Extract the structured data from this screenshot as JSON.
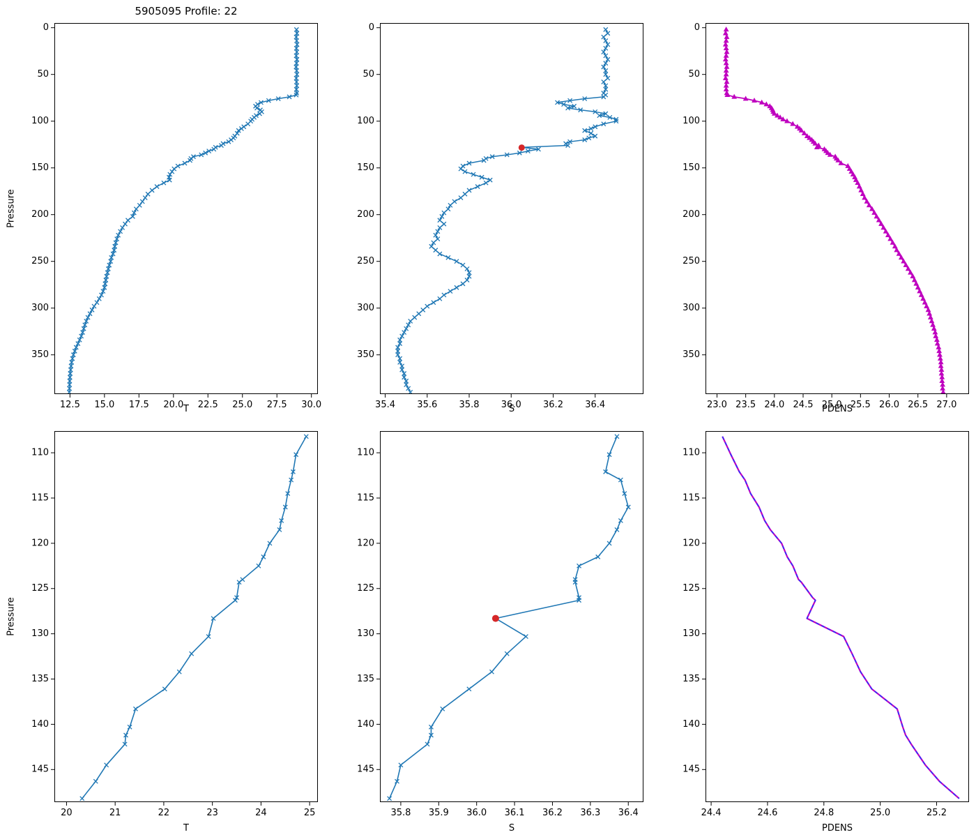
{
  "title": "5905095 Profile: 22",
  "colors": {
    "series_blue": "#1f77b4",
    "series_magenta": "#bf00bf",
    "overlay_dash_blue": "#2d2dff",
    "highlight_red": "#d62728",
    "axis": "#000000",
    "background": "#ffffff"
  },
  "profiles": {
    "top": {
      "pressure": [
        2,
        6,
        10,
        14,
        18,
        22,
        26,
        30,
        34,
        38,
        42,
        46,
        50,
        54,
        58,
        62,
        66,
        70,
        72,
        74,
        76,
        78,
        80,
        82,
        84,
        86,
        88,
        90,
        92,
        94,
        96,
        98,
        100,
        103,
        106,
        108,
        110,
        113,
        116,
        118,
        120,
        122,
        124,
        126,
        128,
        130,
        132,
        134,
        136,
        138,
        140,
        142,
        145,
        148,
        151,
        154,
        157,
        160,
        163,
        166,
        170,
        174,
        178,
        182,
        186,
        190,
        194,
        198,
        202,
        206,
        210,
        214,
        218,
        222,
        226,
        230,
        234,
        238,
        242,
        246,
        250,
        254,
        258,
        262,
        266,
        270,
        274,
        278,
        282,
        286,
        290,
        294,
        298,
        302,
        306,
        310,
        314,
        318,
        322,
        326,
        330,
        334,
        338,
        342,
        346,
        350,
        354,
        358,
        362,
        366,
        370,
        374,
        378,
        382,
        386,
        390
      ],
      "T": [
        28.92,
        28.95,
        28.9,
        28.93,
        28.96,
        28.91,
        28.94,
        28.9,
        28.95,
        28.92,
        28.89,
        28.93,
        28.95,
        28.9,
        28.92,
        28.94,
        28.91,
        28.93,
        28.9,
        28.4,
        27.6,
        26.9,
        26.35,
        26.1,
        25.95,
        26.05,
        26.3,
        26.4,
        26.25,
        26.0,
        25.85,
        25.7,
        25.6,
        25.4,
        25.1,
        24.93,
        24.72,
        24.62,
        24.45,
        24.35,
        24.18,
        24.0,
        23.6,
        23.47,
        23.05,
        22.93,
        22.57,
        22.32,
        22.02,
        21.45,
        21.27,
        21.2,
        20.82,
        20.32,
        20.05,
        19.9,
        19.75,
        19.68,
        19.72,
        19.3,
        18.8,
        18.45,
        18.15,
        17.95,
        17.75,
        17.55,
        17.3,
        17.15,
        17.05,
        16.7,
        16.5,
        16.3,
        16.15,
        16.0,
        15.9,
        15.82,
        15.75,
        15.7,
        15.62,
        15.5,
        15.45,
        15.35,
        15.28,
        15.22,
        15.15,
        15.1,
        15.05,
        15.0,
        14.9,
        14.78,
        14.62,
        14.45,
        14.25,
        14.1,
        13.95,
        13.8,
        13.68,
        13.58,
        13.5,
        13.42,
        13.32,
        13.2,
        13.08,
        12.95,
        12.85,
        12.75,
        12.68,
        12.62,
        12.58,
        12.55,
        12.52,
        12.5,
        12.48,
        12.47,
        12.46,
        12.45
      ],
      "S": [
        36.45,
        36.46,
        36.44,
        36.45,
        36.46,
        36.45,
        36.44,
        36.45,
        36.46,
        36.45,
        36.44,
        36.45,
        36.45,
        36.46,
        36.44,
        36.45,
        36.45,
        36.44,
        36.45,
        36.44,
        36.35,
        36.28,
        36.22,
        36.25,
        36.3,
        36.27,
        36.33,
        36.4,
        36.45,
        36.42,
        36.47,
        36.5,
        36.5,
        36.44,
        36.4,
        36.38,
        36.35,
        36.38,
        36.4,
        36.37,
        36.35,
        36.28,
        36.26,
        36.27,
        36.05,
        36.13,
        36.08,
        36.04,
        35.98,
        35.91,
        35.88,
        35.87,
        35.8,
        35.77,
        35.76,
        35.78,
        35.82,
        35.86,
        35.9,
        35.88,
        35.84,
        35.8,
        35.78,
        35.76,
        35.73,
        35.71,
        35.7,
        35.68,
        35.67,
        35.66,
        35.68,
        35.66,
        35.65,
        35.64,
        35.65,
        35.63,
        35.62,
        35.64,
        35.66,
        35.7,
        35.74,
        35.77,
        35.79,
        35.8,
        35.8,
        35.79,
        35.77,
        35.74,
        35.71,
        35.68,
        35.66,
        35.63,
        35.6,
        35.58,
        35.56,
        35.54,
        35.52,
        35.51,
        35.5,
        35.49,
        35.48,
        35.47,
        35.47,
        35.46,
        35.46,
        35.46,
        35.47,
        35.47,
        35.48,
        35.48,
        35.49,
        35.49,
        35.5,
        35.5,
        35.51,
        35.52
      ],
      "PDENS": [
        23.16,
        23.15,
        23.17,
        23.16,
        23.15,
        23.16,
        23.17,
        23.16,
        23.15,
        23.16,
        23.17,
        23.16,
        23.16,
        23.15,
        23.17,
        23.16,
        23.16,
        23.17,
        23.18,
        23.3,
        23.5,
        23.65,
        23.78,
        23.86,
        23.92,
        23.95,
        23.97,
        23.98,
        24.0,
        24.05,
        24.1,
        24.15,
        24.22,
        24.32,
        24.4,
        24.44,
        24.47,
        24.52,
        24.57,
        24.61,
        24.65,
        24.68,
        24.71,
        24.77,
        24.74,
        24.87,
        24.9,
        24.93,
        24.97,
        25.06,
        25.08,
        25.11,
        25.16,
        25.28,
        25.31,
        25.34,
        25.37,
        25.4,
        25.42,
        25.45,
        25.48,
        25.51,
        25.54,
        25.57,
        25.61,
        25.65,
        25.7,
        25.74,
        25.78,
        25.82,
        25.86,
        25.9,
        25.94,
        25.98,
        26.02,
        26.06,
        26.1,
        26.13,
        26.17,
        26.21,
        26.25,
        26.29,
        26.33,
        26.37,
        26.41,
        26.44,
        26.47,
        26.5,
        26.53,
        26.56,
        26.59,
        26.62,
        26.65,
        26.68,
        26.7,
        26.72,
        26.74,
        26.76,
        26.78,
        26.8,
        26.81,
        26.83,
        26.84,
        26.86,
        26.87,
        26.88,
        26.89,
        26.9,
        26.9,
        26.91,
        26.91,
        26.92,
        26.92,
        26.93,
        26.93,
        26.94
      ]
    },
    "zoom": {
      "pressure": [
        108.2,
        110.2,
        112.1,
        113.0,
        114.5,
        116.0,
        117.5,
        118.5,
        120.0,
        121.5,
        122.5,
        124.0,
        124.3,
        126.0,
        126.3,
        128.3,
        130.3,
        132.2,
        134.2,
        136.1,
        138.3,
        140.3,
        141.2,
        142.2,
        144.5,
        146.3,
        148.2
      ],
      "T": [
        24.93,
        24.72,
        24.66,
        24.62,
        24.55,
        24.5,
        24.42,
        24.38,
        24.18,
        24.05,
        23.95,
        23.62,
        23.55,
        23.5,
        23.47,
        23.02,
        22.92,
        22.57,
        22.32,
        22.02,
        21.42,
        21.3,
        21.22,
        21.2,
        20.82,
        20.6,
        20.32
      ],
      "S": [
        36.37,
        36.35,
        36.34,
        36.38,
        36.39,
        36.4,
        36.38,
        36.37,
        36.35,
        36.32,
        36.27,
        36.26,
        36.26,
        36.27,
        36.27,
        36.05,
        36.13,
        36.08,
        36.04,
        35.98,
        35.91,
        35.88,
        35.88,
        35.87,
        35.8,
        35.79,
        35.77
      ],
      "PDENS": [
        24.44,
        24.47,
        24.5,
        24.52,
        24.54,
        24.57,
        24.59,
        24.61,
        24.65,
        24.67,
        24.69,
        24.71,
        24.72,
        24.76,
        24.77,
        24.74,
        24.87,
        24.9,
        24.93,
        24.97,
        25.06,
        25.08,
        25.09,
        25.11,
        25.16,
        25.21,
        25.28
      ]
    }
  },
  "chart_data": [
    {
      "id": "temperature-full",
      "type": "line",
      "title": "5905095 Profile: 22",
      "xlabel": "T",
      "ylabel": "Pressure",
      "xlim": [
        11.37,
        30.47
      ],
      "ylim": [
        -5,
        392
      ],
      "xticks": {
        "values": [
          12.5,
          15.0,
          17.5,
          20.0,
          22.5,
          25.0,
          27.5,
          30.0
        ],
        "labels": [
          "12.5",
          "15.0",
          "17.5",
          "20.0",
          "22.5",
          "25.0",
          "27.5",
          "30.0"
        ]
      },
      "yticks": {
        "values": [
          0,
          50,
          100,
          150,
          200,
          250,
          300,
          350
        ],
        "labels": [
          "0",
          "50",
          "100",
          "150",
          "200",
          "250",
          "300",
          "350"
        ]
      },
      "series": [
        {
          "data": "top",
          "x": "T",
          "y": "pressure",
          "color": "#1f77b4",
          "marker": "x",
          "lw": 1.5
        }
      ]
    },
    {
      "id": "salinity-full",
      "type": "line",
      "xlabel": "S",
      "ylabel": "",
      "xlim": [
        35.375,
        36.63
      ],
      "ylim": [
        -5,
        392
      ],
      "xticks": {
        "values": [
          35.4,
          35.6,
          35.8,
          36.0,
          36.2,
          36.4
        ],
        "labels": [
          "35.4",
          "35.6",
          "35.8",
          "36.0",
          "36.2",
          "36.4"
        ]
      },
      "yticks": {
        "values": [
          0,
          50,
          100,
          150,
          200,
          250,
          300,
          350
        ],
        "labels": [
          "0",
          "50",
          "100",
          "150",
          "200",
          "250",
          "300",
          "350"
        ]
      },
      "series": [
        {
          "data": "top",
          "x": "S",
          "y": "pressure",
          "color": "#1f77b4",
          "marker": "x",
          "lw": 1.5
        }
      ],
      "points": [
        {
          "x": 36.05,
          "y": 128.3,
          "color": "#d62728",
          "r": 4.5,
          "name": "flagged-sample-dot"
        }
      ]
    },
    {
      "id": "density-full",
      "type": "line",
      "xlabel": "PDENS",
      "ylabel": "",
      "xlim": [
        22.8,
        27.39
      ],
      "ylim": [
        -5,
        392
      ],
      "xticks": {
        "values": [
          23.0,
          23.5,
          24.0,
          24.5,
          25.0,
          25.5,
          26.0,
          26.5,
          27.0
        ],
        "labels": [
          "23.0",
          "23.5",
          "24.0",
          "24.5",
          "25.0",
          "25.5",
          "26.0",
          "26.5",
          "27.0"
        ]
      },
      "yticks": {
        "values": [
          0,
          50,
          100,
          150,
          200,
          250,
          300,
          350
        ],
        "labels": [
          "0",
          "50",
          "100",
          "150",
          "200",
          "250",
          "300",
          "350"
        ]
      },
      "series": [
        {
          "data": "top",
          "x": "PDENS",
          "y": "pressure",
          "color": "#bf00bf",
          "marker": "triangle",
          "lw": 1.8
        }
      ]
    },
    {
      "id": "temperature-zoom",
      "type": "line",
      "xlabel": "T",
      "ylabel": "Pressure",
      "xlim": [
        19.75,
        25.17
      ],
      "ylim": [
        107.6,
        148.6
      ],
      "xticks": {
        "values": [
          20,
          21,
          22,
          23,
          24,
          25
        ],
        "labels": [
          "20",
          "21",
          "22",
          "23",
          "24",
          "25"
        ]
      },
      "yticks": {
        "values": [
          110,
          115,
          120,
          125,
          130,
          135,
          140,
          145
        ],
        "labels": [
          "110",
          "115",
          "120",
          "125",
          "130",
          "135",
          "140",
          "145"
        ]
      },
      "series": [
        {
          "data": "zoom",
          "x": "T",
          "y": "pressure",
          "color": "#1f77b4",
          "marker": "x",
          "lw": 1.6
        }
      ]
    },
    {
      "id": "salinity-zoom",
      "type": "line",
      "xlabel": "S",
      "ylabel": "",
      "xlim": [
        35.745,
        36.44
      ],
      "ylim": [
        107.6,
        148.6
      ],
      "xticks": {
        "values": [
          35.8,
          35.9,
          36.0,
          36.1,
          36.2,
          36.3,
          36.4
        ],
        "labels": [
          "35.8",
          "35.9",
          "36.0",
          "36.1",
          "36.2",
          "36.3",
          "36.4"
        ]
      },
      "yticks": {
        "values": [
          110,
          115,
          120,
          125,
          130,
          135,
          140,
          145
        ],
        "labels": [
          "110",
          "115",
          "120",
          "125",
          "130",
          "135",
          "140",
          "145"
        ]
      },
      "series": [
        {
          "data": "zoom",
          "x": "S",
          "y": "pressure",
          "color": "#1f77b4",
          "marker": "x",
          "lw": 1.6
        }
      ],
      "points": [
        {
          "x": 36.05,
          "y": 128.3,
          "color": "#d62728",
          "r": 5,
          "name": "flagged-sample-dot"
        }
      ]
    },
    {
      "id": "density-zoom",
      "type": "line",
      "xlabel": "PDENS",
      "ylabel": "",
      "xlim": [
        24.38,
        25.315
      ],
      "ylim": [
        107.6,
        148.6
      ],
      "xticks": {
        "values": [
          24.4,
          24.6,
          24.8,
          25.0,
          25.2
        ],
        "labels": [
          "24.4",
          "24.6",
          "24.8",
          "25.0",
          "25.2"
        ]
      },
      "yticks": {
        "values": [
          110,
          115,
          120,
          125,
          130,
          135,
          140,
          145
        ],
        "labels": [
          "110",
          "115",
          "120",
          "125",
          "130",
          "135",
          "140",
          "145"
        ]
      },
      "series": [
        {
          "data": "zoom",
          "x": "PDENS",
          "y": "pressure",
          "color": "#bf00bf",
          "marker": null,
          "lw": 2.2
        },
        {
          "data": "zoom",
          "x": "PDENS",
          "y": "pressure",
          "color": "#2d2dff",
          "marker": null,
          "lw": 1.6,
          "dash": [
            5,
            4
          ]
        }
      ]
    }
  ]
}
